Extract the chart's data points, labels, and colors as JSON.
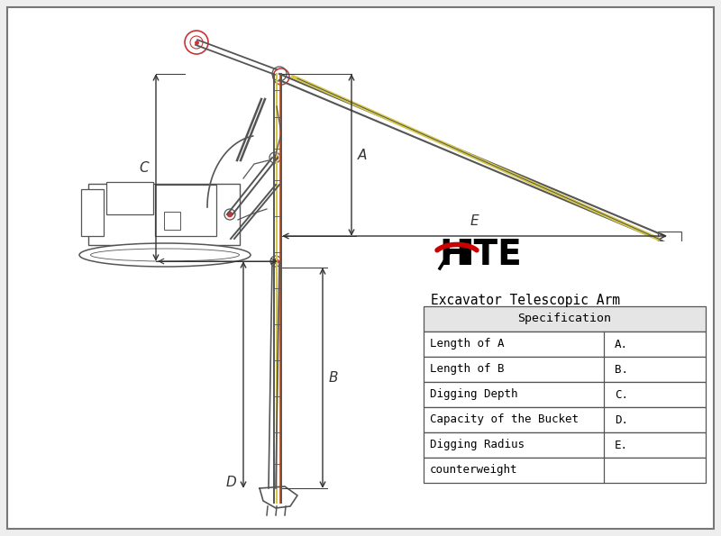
{
  "bg_color": "#eeeeee",
  "line_color": "#444444",
  "dim_line_color": "#333333",
  "table_title": "Excavator Telescopic Arm",
  "spec_header": "Specification",
  "table_rows": [
    [
      "Length of A",
      "A."
    ],
    [
      "Length of B",
      "B."
    ],
    [
      "Digging Depth",
      "C."
    ],
    [
      "Capacity of the Bucket",
      "D."
    ],
    [
      "Digging Radius",
      "E."
    ],
    [
      "counterweight",
      ""
    ]
  ],
  "label_A": "A",
  "label_B": "B",
  "label_C": "C",
  "label_D": "D",
  "label_E": "E",
  "hite_arc_color": "#cc0000",
  "arm_color": "#555555",
  "yellow_color": "#d4c84a",
  "red_color": "#cc3333"
}
